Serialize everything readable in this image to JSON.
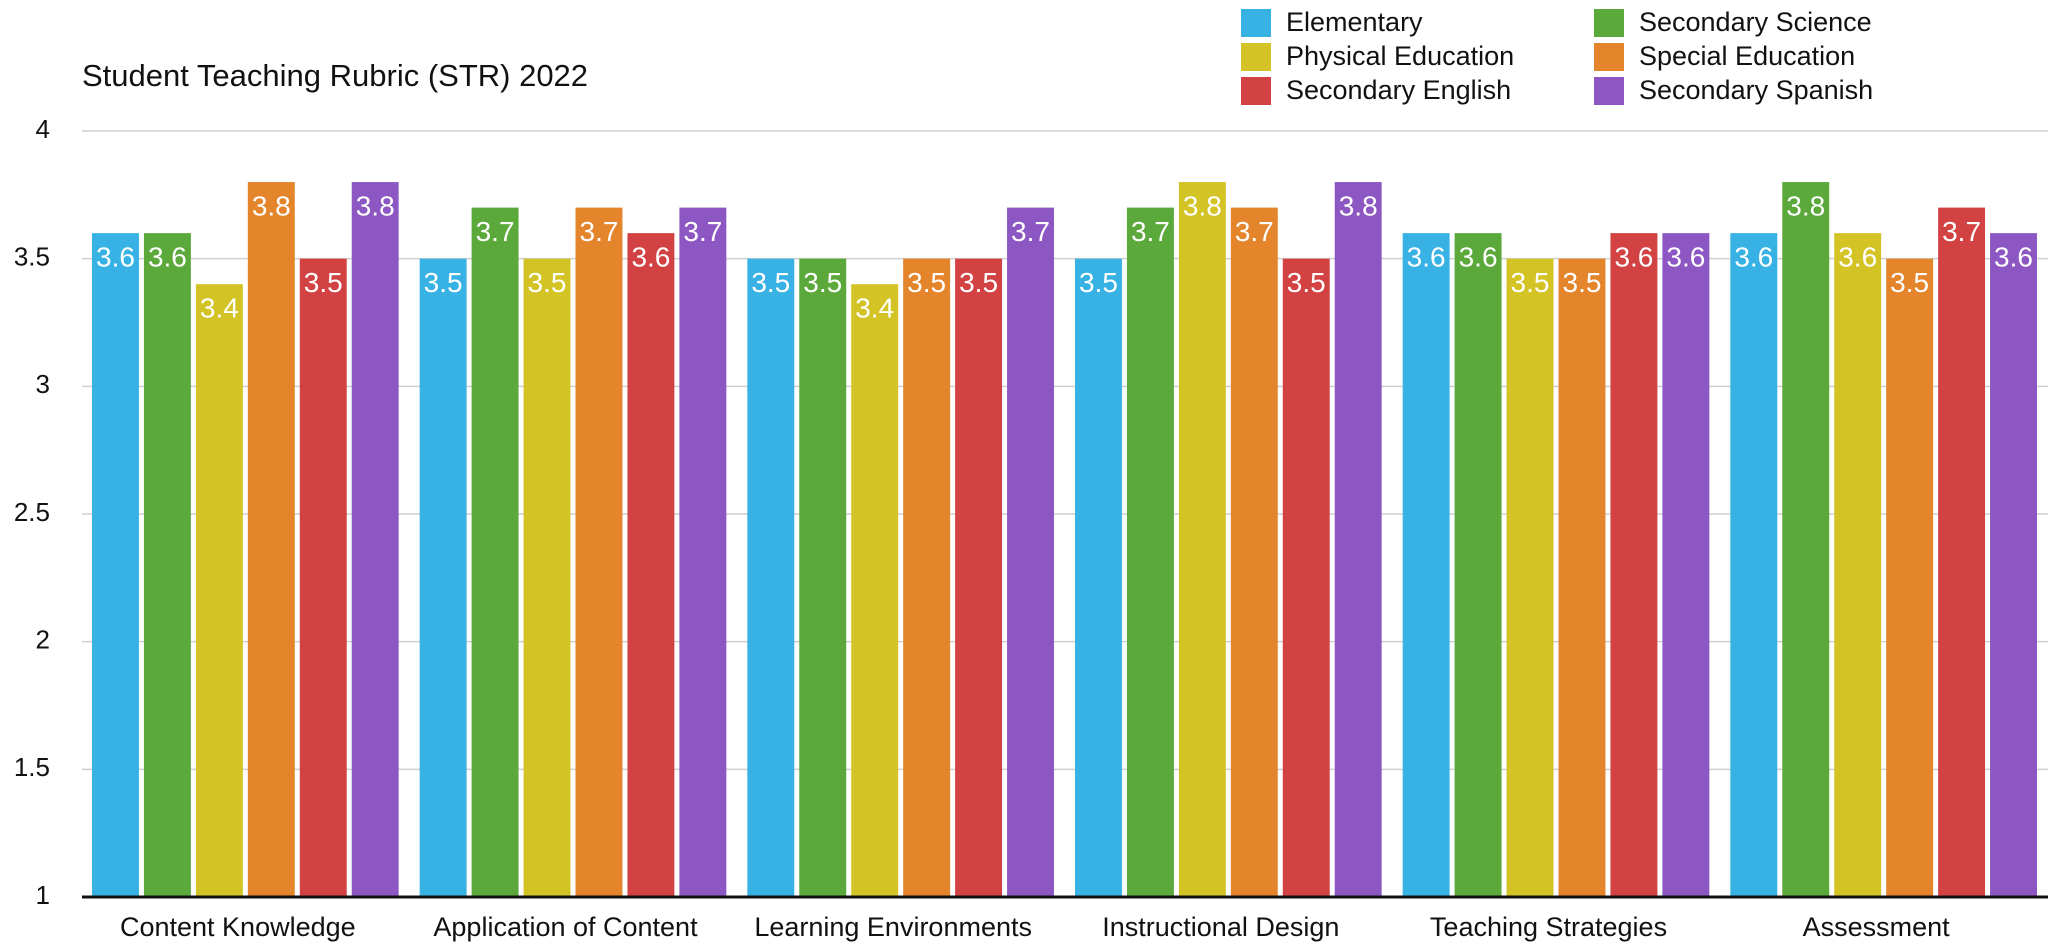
{
  "chart_data": {
    "type": "bar",
    "title": "Student Teaching Rubric (STR) 2022",
    "categories": [
      "Content Knowledge",
      "Application of Content",
      "Learning Environments",
      "Instructional Design",
      "Teaching Strategies",
      "Assessment"
    ],
    "series": [
      {
        "name": "Elementary",
        "color": "#38b2e4",
        "values": [
          3.6,
          3.5,
          3.5,
          3.5,
          3.6,
          3.6
        ]
      },
      {
        "name": "Secondary Science",
        "color": "#5ba83b",
        "values": [
          3.6,
          3.7,
          3.5,
          3.7,
          3.6,
          3.8
        ]
      },
      {
        "name": "Physical Education",
        "color": "#d3c325",
        "values": [
          3.4,
          3.5,
          3.4,
          3.8,
          3.5,
          3.6
        ]
      },
      {
        "name": "Special Education",
        "color": "#e4842b",
        "values": [
          3.8,
          3.7,
          3.5,
          3.7,
          3.5,
          3.5
        ]
      },
      {
        "name": "Secondary English",
        "color": "#d34242",
        "values": [
          3.5,
          3.6,
          3.5,
          3.5,
          3.6,
          3.7
        ]
      },
      {
        "name": "Secondary Spanish",
        "color": "#8d57c3",
        "values": [
          3.8,
          3.7,
          3.7,
          3.8,
          3.6,
          3.6
        ]
      }
    ],
    "ylim": [
      1,
      4
    ],
    "yticks": [
      1,
      1.5,
      2,
      2.5,
      3,
      3.5,
      4
    ],
    "grid": true,
    "legend": "top-right"
  }
}
